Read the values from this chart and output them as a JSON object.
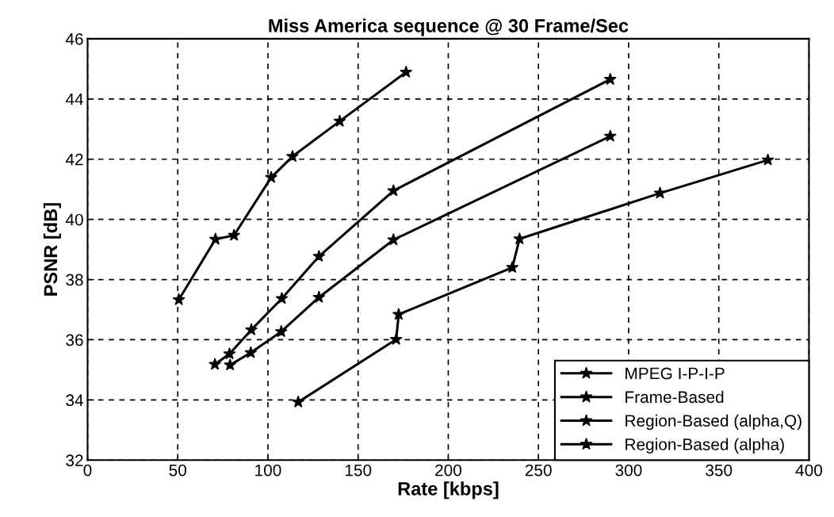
{
  "chart_data": {
    "type": "line",
    "title": "Miss America sequence @ 30 Frame/Sec",
    "xlabel": "Rate [kbps]",
    "ylabel": "PSNR [dB]",
    "xlim": [
      0,
      400
    ],
    "xticks": [
      0,
      50,
      100,
      150,
      200,
      250,
      300,
      350,
      400
    ],
    "ylim": [
      32,
      46
    ],
    "yticks": [
      32,
      34,
      36,
      38,
      40,
      42,
      44,
      46
    ],
    "grid": true,
    "legend": "bottom right",
    "marker": "star",
    "line_style": "solid",
    "series": [
      {
        "name": "MPEG I-P-I-P",
        "color": "#000000",
        "x": [
          50.6,
          70.9,
          81.2,
          101.8,
          113.6,
          139.8,
          176.6
        ],
        "values": [
          37.33,
          39.34,
          39.47,
          41.39,
          42.09,
          43.26,
          44.89
        ]
      },
      {
        "name": "Frame-Based",
        "color": "#000000",
        "x": [
          70.6,
          78.7,
          90.8,
          107.7,
          128.3,
          169.6,
          289.8
        ],
        "values": [
          35.18,
          35.53,
          36.33,
          37.37,
          38.77,
          40.95,
          44.65
        ]
      },
      {
        "name": "Region-Based (alpha,Q)",
        "color": "#000000",
        "x": [
          79.0,
          90.5,
          107.4,
          128.3,
          169.6,
          289.8
        ],
        "values": [
          35.16,
          35.57,
          36.27,
          37.41,
          39.32,
          42.76
        ]
      },
      {
        "name": "Region-Based (alpha)",
        "color": "#000000",
        "x": [
          116.8,
          171.1,
          172.5,
          235.5,
          239.5,
          317.4,
          377.2
        ],
        "values": [
          33.93,
          36.01,
          36.84,
          38.4,
          39.35,
          40.87,
          41.97
        ]
      }
    ]
  }
}
